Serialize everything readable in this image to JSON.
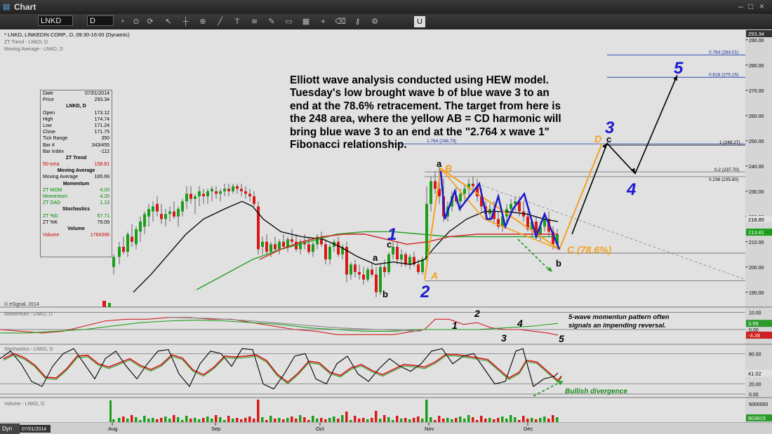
{
  "window": {
    "title": "Chart",
    "symbol": "LNKD",
    "interval": "D",
    "controls": [
      "–",
      "□",
      "×"
    ]
  },
  "toolbar": {
    "icons": [
      "pointer-icon",
      "crosshair-icon",
      "zoom-icon",
      "line-icon",
      "text-icon",
      "fib-icon",
      "pencil-icon",
      "shape-icon",
      "grid-icon",
      "magnet-icon",
      "eraser-icon",
      "lock-icon",
      "settings-icon",
      "u-icon"
    ]
  },
  "chart_header": {
    "title": "* LNKD, LINKEDIN CORP., D, 09:30-16:00 (Dynamic)",
    "study1": "ZT Trend - LNKD, D",
    "study2": "Moving Average - LNKD, D",
    "copyright": "© eSignal, 2014",
    "momentum_label": "Momentum - LNKD, D",
    "stochastics_label": "Stochastics - LNKD, D",
    "volume_label": "Volume - LNKD, D"
  },
  "data_window": {
    "rows": [
      {
        "label": "Date",
        "value": "07/01/2014"
      },
      {
        "label": "Price",
        "value": "293.34"
      },
      {
        "head": "LNKD, D"
      },
      {
        "label": "Open",
        "value": "173.12"
      },
      {
        "label": "High",
        "value": "174.74"
      },
      {
        "label": "Low",
        "value": "171.24"
      },
      {
        "label": "Close",
        "value": "171.75"
      },
      {
        "label": "Tick Range",
        "value": "350"
      },
      {
        "label": "Bar #",
        "value": "343/455"
      },
      {
        "label": "Bar Index",
        "value": "-112"
      },
      {
        "head": "ZT Trend"
      },
      {
        "label": "50-sma",
        "value": "158.81",
        "color": "#d00000"
      },
      {
        "head": "Moving Average"
      },
      {
        "label": "Moving Average",
        "value": "165.69"
      },
      {
        "head": "Momentum"
      },
      {
        "label": "ZT MOM",
        "value": "4.20",
        "color": "#008800"
      },
      {
        "label": "Momentum",
        "value": "4.20",
        "color": "#008800"
      },
      {
        "label": "ZT DAD",
        "value": "1.13",
        "color": "#008800"
      },
      {
        "head": "Stochastics"
      },
      {
        "label": "ZT %D",
        "value": "57.71",
        "color": "#008800"
      },
      {
        "label": "ZT %K",
        "value": "79.09"
      },
      {
        "head": "Volume"
      },
      {
        "label": "Volume",
        "value": "1764396",
        "color": "#d00000"
      }
    ]
  },
  "annotation": "Elliott wave analysis conducted using HEW model. Tuesday's low brought wave b of blue wave 3 to an end at the 78.6% retracement. The target from here is the 248 area, where the yellow AB = CD harmonic will bring blue wave 3 to an end at the \"2.764 x wave 1\" Fibonacci relationship.",
  "wave_labels": {
    "w1": "1",
    "w2": "2",
    "w3": "3",
    "w4": "4",
    "w5": "5",
    "a1": "a",
    "c1": "c",
    "b1": "b",
    "a2": "a",
    "b2": "b",
    "c2": "c",
    "A": "A",
    "B": "B",
    "C": "C (78.6%)",
    "D": "D"
  },
  "fib_labels": {
    "f764": "0.764 (284.01)",
    "f618": "0.618 (275.15)",
    "f2764": "2.764 (248.79)",
    "f1": "1 (248.27)",
    "f02": "0.2 (237.70)",
    "f0236": "0.236 (235.80)"
  },
  "momentum_note": "5-wave momentun pattern often signals an impending reversal.",
  "momentum_counts": [
    "1",
    "2",
    "3",
    "4",
    "5"
  ],
  "divergence_note": "Bullish divergence",
  "price_axis": {
    "ticks": [
      "290.00",
      "280.00",
      "270.00",
      "260.00",
      "250.00",
      "240.00",
      "230.00",
      "220.00",
      "210.00",
      "200.00",
      "190.00"
    ],
    "last_price": "293.34",
    "ma_tag": "218.85",
    "close_tag": "213.81"
  },
  "momentum_axis": {
    "ticks": [
      "10.00",
      "0.00"
    ],
    "tag1": "3.59",
    "tag2": "-3.28"
  },
  "stoch_axis": {
    "ticks": [
      "80.00",
      "20.00",
      "0.00"
    ],
    "tag": "41.02"
  },
  "volume_axis": {
    "ticks": [
      "5000000"
    ],
    "tag": "803615"
  },
  "time_axis": {
    "start_label": "07/01/2014",
    "months": [
      "Aug",
      "Sep",
      "Oct",
      "Nov",
      "Dec"
    ],
    "corner": "Dyn"
  },
  "colors": {
    "up_candle": "#1a9e1a",
    "down_candle": "#d81818",
    "wave_blue": "#1a1acd",
    "harmonic_orange": "#f5a020",
    "ma_black": "#000000",
    "ma_red": "#d02020",
    "ma_green": "#22a022"
  }
}
